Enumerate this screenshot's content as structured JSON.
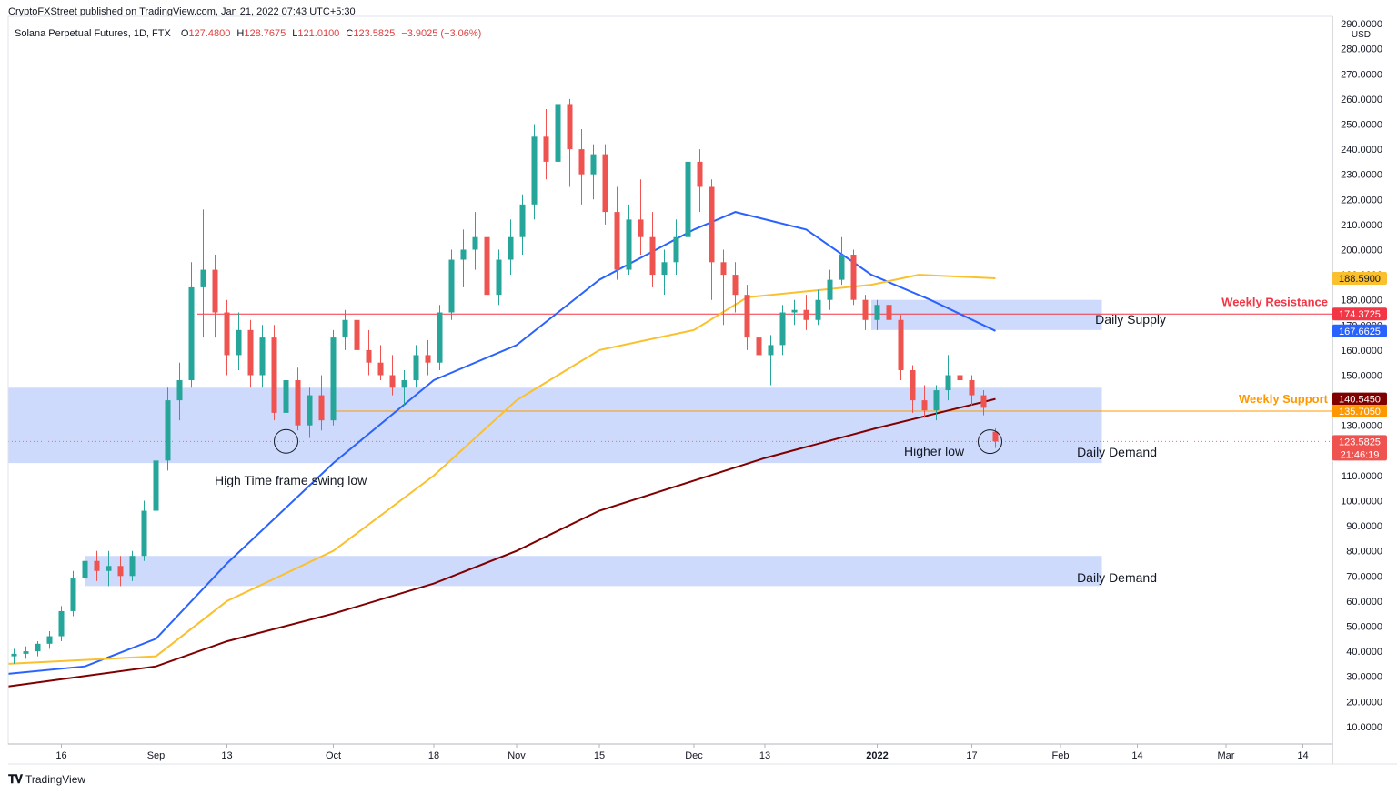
{
  "header": {
    "publisher_line": "CryptoFXStreet published on TradingView.com, Jan 21, 2022 07:43 UTC+5:30"
  },
  "ohlc_bar": {
    "symbol": "Solana Perpetual Futures, 1D, FTX",
    "o_label": "O",
    "o_value": "127.4800",
    "h_label": "H",
    "h_value": "128.7675",
    "l_label": "L",
    "l_value": "121.0100",
    "c_label": "C",
    "c_value": "123.5825",
    "change": "−3.9025 (−3.06%)"
  },
  "footer": {
    "brand": "TradingView"
  },
  "chart_data": {
    "type": "candlestick",
    "title": "Solana Perpetual Futures, 1D, FTX",
    "currency_label": "USD",
    "y_range": [
      0,
      295
    ],
    "y_ticks": [
      "290.0000",
      "280.0000",
      "270.0000",
      "260.0000",
      "250.0000",
      "240.0000",
      "230.0000",
      "220.0000",
      "210.0000",
      "200.0000",
      "190.0000",
      "180.0000",
      "170.0000",
      "160.0000",
      "150.0000",
      "140.0000",
      "130.0000",
      "120.0000",
      "110.0000",
      "100.0000",
      "90.0000",
      "80.0000",
      "70.0000",
      "60.0000",
      "50.0000",
      "40.0000",
      "30.0000",
      "20.0000",
      "10.0000"
    ],
    "x_ticks": [
      {
        "label": "16",
        "date": "2021-08-16"
      },
      {
        "label": "Sep",
        "date": "2021-09-01"
      },
      {
        "label": "13",
        "date": "2021-09-13"
      },
      {
        "label": "Oct",
        "date": "2021-10-01"
      },
      {
        "label": "18",
        "date": "2021-10-18"
      },
      {
        "label": "Nov",
        "date": "2021-11-01"
      },
      {
        "label": "15",
        "date": "2021-11-15"
      },
      {
        "label": "Dec",
        "date": "2021-12-01"
      },
      {
        "label": "13",
        "date": "2021-12-13"
      },
      {
        "label": "2022",
        "date": "2022-01-01",
        "bold": true
      },
      {
        "label": "17",
        "date": "2022-01-17"
      },
      {
        "label": "Feb",
        "date": "2022-02-01"
      },
      {
        "label": "14",
        "date": "2022-02-14"
      },
      {
        "label": "Mar",
        "date": "2022-03-01"
      },
      {
        "label": "14",
        "date": "2022-03-14"
      }
    ],
    "x_domain": [
      "2021-08-07",
      "2022-03-19"
    ],
    "colors": {
      "up": "#26a69a",
      "down": "#ef5350",
      "sma_fast": "#2962ff",
      "sma_mid": "#fbc02d",
      "sma_slow": "#800000",
      "zone": "#c6d3fb",
      "resistance": "#f23645",
      "support": "#ff9800",
      "last": "#f06e6e"
    },
    "candles_sampled_every": "2 days",
    "candles": [
      {
        "d": "2021-08-08",
        "o": 38,
        "h": 41,
        "l": 35,
        "c": 39
      },
      {
        "d": "2021-08-10",
        "o": 39,
        "h": 42,
        "l": 37,
        "c": 40
      },
      {
        "d": "2021-08-12",
        "o": 40,
        "h": 44,
        "l": 38,
        "c": 43
      },
      {
        "d": "2021-08-14",
        "o": 43,
        "h": 48,
        "l": 41,
        "c": 46
      },
      {
        "d": "2021-08-16",
        "o": 46,
        "h": 58,
        "l": 44,
        "c": 56
      },
      {
        "d": "2021-08-18",
        "o": 56,
        "h": 72,
        "l": 54,
        "c": 69
      },
      {
        "d": "2021-08-20",
        "o": 69,
        "h": 82,
        "l": 66,
        "c": 76
      },
      {
        "d": "2021-08-22",
        "o": 76,
        "h": 80,
        "l": 68,
        "c": 72
      },
      {
        "d": "2021-08-24",
        "o": 72,
        "h": 80,
        "l": 66,
        "c": 74
      },
      {
        "d": "2021-08-26",
        "o": 74,
        "h": 78,
        "l": 66,
        "c": 70
      },
      {
        "d": "2021-08-28",
        "o": 70,
        "h": 80,
        "l": 68,
        "c": 78
      },
      {
        "d": "2021-08-30",
        "o": 78,
        "h": 100,
        "l": 76,
        "c": 96
      },
      {
        "d": "2021-09-01",
        "o": 96,
        "h": 122,
        "l": 92,
        "c": 116
      },
      {
        "d": "2021-09-03",
        "o": 116,
        "h": 145,
        "l": 112,
        "c": 140
      },
      {
        "d": "2021-09-05",
        "o": 140,
        "h": 155,
        "l": 132,
        "c": 148
      },
      {
        "d": "2021-09-07",
        "o": 148,
        "h": 195,
        "l": 145,
        "c": 185
      },
      {
        "d": "2021-09-09",
        "o": 185,
        "h": 216,
        "l": 165,
        "c": 192
      },
      {
        "d": "2021-09-11",
        "o": 192,
        "h": 198,
        "l": 165,
        "c": 175
      },
      {
        "d": "2021-09-13",
        "o": 175,
        "h": 180,
        "l": 150,
        "c": 158
      },
      {
        "d": "2021-09-15",
        "o": 158,
        "h": 175,
        "l": 152,
        "c": 168
      },
      {
        "d": "2021-09-17",
        "o": 168,
        "h": 172,
        "l": 145,
        "c": 150
      },
      {
        "d": "2021-09-19",
        "o": 150,
        "h": 170,
        "l": 145,
        "c": 165
      },
      {
        "d": "2021-09-21",
        "o": 165,
        "h": 170,
        "l": 132,
        "c": 135
      },
      {
        "d": "2021-09-23",
        "o": 135,
        "h": 152,
        "l": 122,
        "c": 148
      },
      {
        "d": "2021-09-25",
        "o": 148,
        "h": 153,
        "l": 128,
        "c": 130
      },
      {
        "d": "2021-09-27",
        "o": 130,
        "h": 145,
        "l": 125,
        "c": 142
      },
      {
        "d": "2021-09-29",
        "o": 142,
        "h": 150,
        "l": 128,
        "c": 132
      },
      {
        "d": "2021-10-01",
        "o": 132,
        "h": 168,
        "l": 130,
        "c": 165
      },
      {
        "d": "2021-10-03",
        "o": 165,
        "h": 176,
        "l": 160,
        "c": 172
      },
      {
        "d": "2021-10-05",
        "o": 172,
        "h": 174,
        "l": 155,
        "c": 160
      },
      {
        "d": "2021-10-07",
        "o": 160,
        "h": 168,
        "l": 150,
        "c": 155
      },
      {
        "d": "2021-10-09",
        "o": 155,
        "h": 162,
        "l": 148,
        "c": 150
      },
      {
        "d": "2021-10-11",
        "o": 150,
        "h": 158,
        "l": 142,
        "c": 145
      },
      {
        "d": "2021-10-13",
        "o": 145,
        "h": 152,
        "l": 138,
        "c": 148
      },
      {
        "d": "2021-10-15",
        "o": 148,
        "h": 162,
        "l": 145,
        "c": 158
      },
      {
        "d": "2021-10-17",
        "o": 158,
        "h": 164,
        "l": 150,
        "c": 155
      },
      {
        "d": "2021-10-19",
        "o": 155,
        "h": 178,
        "l": 152,
        "c": 175
      },
      {
        "d": "2021-10-21",
        "o": 175,
        "h": 200,
        "l": 172,
        "c": 196
      },
      {
        "d": "2021-10-23",
        "o": 196,
        "h": 208,
        "l": 185,
        "c": 200
      },
      {
        "d": "2021-10-25",
        "o": 200,
        "h": 215,
        "l": 192,
        "c": 205
      },
      {
        "d": "2021-10-27",
        "o": 205,
        "h": 210,
        "l": 175,
        "c": 182
      },
      {
        "d": "2021-10-29",
        "o": 182,
        "h": 200,
        "l": 178,
        "c": 196
      },
      {
        "d": "2021-10-31",
        "o": 196,
        "h": 212,
        "l": 190,
        "c": 205
      },
      {
        "d": "2021-11-02",
        "o": 205,
        "h": 222,
        "l": 198,
        "c": 218
      },
      {
        "d": "2021-11-04",
        "o": 218,
        "h": 250,
        "l": 212,
        "c": 245
      },
      {
        "d": "2021-11-06",
        "o": 245,
        "h": 256,
        "l": 228,
        "c": 235
      },
      {
        "d": "2021-11-08",
        "o": 235,
        "h": 262,
        "l": 232,
        "c": 258
      },
      {
        "d": "2021-11-10",
        "o": 258,
        "h": 260,
        "l": 225,
        "c": 240
      },
      {
        "d": "2021-11-12",
        "o": 240,
        "h": 248,
        "l": 218,
        "c": 230
      },
      {
        "d": "2021-11-14",
        "o": 230,
        "h": 242,
        "l": 220,
        "c": 238
      },
      {
        "d": "2021-11-16",
        "o": 238,
        "h": 242,
        "l": 210,
        "c": 215
      },
      {
        "d": "2021-11-18",
        "o": 215,
        "h": 225,
        "l": 188,
        "c": 192
      },
      {
        "d": "2021-11-20",
        "o": 192,
        "h": 218,
        "l": 190,
        "c": 212
      },
      {
        "d": "2021-11-22",
        "o": 212,
        "h": 228,
        "l": 198,
        "c": 205
      },
      {
        "d": "2021-11-24",
        "o": 205,
        "h": 215,
        "l": 185,
        "c": 190
      },
      {
        "d": "2021-11-26",
        "o": 190,
        "h": 200,
        "l": 182,
        "c": 195
      },
      {
        "d": "2021-11-28",
        "o": 195,
        "h": 212,
        "l": 190,
        "c": 205
      },
      {
        "d": "2021-11-30",
        "o": 205,
        "h": 242,
        "l": 202,
        "c": 235
      },
      {
        "d": "2021-12-02",
        "o": 235,
        "h": 240,
        "l": 215,
        "c": 225
      },
      {
        "d": "2021-12-04",
        "o": 225,
        "h": 228,
        "l": 180,
        "c": 195
      },
      {
        "d": "2021-12-06",
        "o": 195,
        "h": 200,
        "l": 170,
        "c": 190
      },
      {
        "d": "2021-12-08",
        "o": 190,
        "h": 195,
        "l": 175,
        "c": 182
      },
      {
        "d": "2021-12-10",
        "o": 182,
        "h": 186,
        "l": 160,
        "c": 165
      },
      {
        "d": "2021-12-12",
        "o": 165,
        "h": 172,
        "l": 152,
        "c": 158
      },
      {
        "d": "2021-12-14",
        "o": 158,
        "h": 166,
        "l": 146,
        "c": 162
      },
      {
        "d": "2021-12-16",
        "o": 162,
        "h": 178,
        "l": 158,
        "c": 175
      },
      {
        "d": "2021-12-18",
        "o": 175,
        "h": 180,
        "l": 170,
        "c": 176
      },
      {
        "d": "2021-12-20",
        "o": 176,
        "h": 182,
        "l": 168,
        "c": 172
      },
      {
        "d": "2021-12-22",
        "o": 172,
        "h": 184,
        "l": 170,
        "c": 180
      },
      {
        "d": "2021-12-24",
        "o": 180,
        "h": 192,
        "l": 176,
        "c": 188
      },
      {
        "d": "2021-12-26",
        "o": 188,
        "h": 205,
        "l": 186,
        "c": 198
      },
      {
        "d": "2021-12-28",
        "o": 198,
        "h": 200,
        "l": 178,
        "c": 180
      },
      {
        "d": "2021-12-30",
        "o": 180,
        "h": 182,
        "l": 168,
        "c": 172
      },
      {
        "d": "2022-01-01",
        "o": 172,
        "h": 180,
        "l": 168,
        "c": 178
      },
      {
        "d": "2022-01-03",
        "o": 178,
        "h": 180,
        "l": 168,
        "c": 172
      },
      {
        "d": "2022-01-05",
        "o": 172,
        "h": 174,
        "l": 148,
        "c": 152
      },
      {
        "d": "2022-01-07",
        "o": 152,
        "h": 154,
        "l": 135,
        "c": 140
      },
      {
        "d": "2022-01-09",
        "o": 140,
        "h": 146,
        "l": 133,
        "c": 136
      },
      {
        "d": "2022-01-11",
        "o": 136,
        "h": 146,
        "l": 132,
        "c": 144
      },
      {
        "d": "2022-01-13",
        "o": 144,
        "h": 158,
        "l": 140,
        "c": 150
      },
      {
        "d": "2022-01-15",
        "o": 150,
        "h": 153,
        "l": 144,
        "c": 148
      },
      {
        "d": "2022-01-17",
        "o": 148,
        "h": 150,
        "l": 138,
        "c": 142
      },
      {
        "d": "2022-01-19",
        "o": 142,
        "h": 144,
        "l": 134,
        "c": 137
      },
      {
        "d": "2022-01-21",
        "o": 127.48,
        "h": 128.7675,
        "l": 121.01,
        "c": 123.5825
      }
    ],
    "moving_averages": [
      {
        "color": "#2962ff",
        "points": [
          [
            "2021-08-07",
            31
          ],
          [
            "2021-08-20",
            34
          ],
          [
            "2021-09-01",
            45
          ],
          [
            "2021-09-13",
            75
          ],
          [
            "2021-10-01",
            115
          ],
          [
            "2021-10-18",
            148
          ],
          [
            "2021-11-01",
            162
          ],
          [
            "2021-11-15",
            188
          ],
          [
            "2021-12-01",
            208
          ],
          [
            "2021-12-08",
            215
          ],
          [
            "2021-12-20",
            208
          ],
          [
            "2021-12-31",
            190
          ],
          [
            "2022-01-10",
            180
          ],
          [
            "2022-01-21",
            167.6625
          ]
        ]
      },
      {
        "color": "#fbc02d",
        "points": [
          [
            "2021-08-07",
            35
          ],
          [
            "2021-09-01",
            38
          ],
          [
            "2021-09-13",
            60
          ],
          [
            "2021-10-01",
            80
          ],
          [
            "2021-10-18",
            110
          ],
          [
            "2021-11-01",
            140
          ],
          [
            "2021-11-15",
            160
          ],
          [
            "2021-12-01",
            168
          ],
          [
            "2021-12-10",
            181
          ],
          [
            "2021-12-31",
            186
          ],
          [
            "2022-01-08",
            190
          ],
          [
            "2022-01-21",
            188.59
          ]
        ]
      },
      {
        "color": "#800000",
        "points": [
          [
            "2021-08-07",
            26
          ],
          [
            "2021-09-01",
            34
          ],
          [
            "2021-09-13",
            44
          ],
          [
            "2021-10-01",
            55
          ],
          [
            "2021-10-18",
            67
          ],
          [
            "2021-11-01",
            80
          ],
          [
            "2021-11-15",
            96
          ],
          [
            "2021-12-01",
            108
          ],
          [
            "2021-12-13",
            117
          ],
          [
            "2022-01-01",
            129
          ],
          [
            "2022-01-21",
            140.545
          ]
        ]
      }
    ],
    "zones": [
      {
        "label": "Daily Supply",
        "low": 168,
        "high": 180,
        "from": "2021-12-31",
        "to": "2022-02-08"
      },
      {
        "label": "Daily Demand",
        "low": 115,
        "high": 145,
        "from": "2021-08-07",
        "to": "2022-02-08"
      },
      {
        "label": "Daily Demand",
        "low": 66,
        "high": 78,
        "from": "2021-08-20",
        "to": "2022-02-08"
      }
    ],
    "horizontal_lines": [
      {
        "label": "Weekly Resistance",
        "value": 174.3725,
        "color": "#f23645",
        "from": "2021-09-08"
      },
      {
        "label": "Weekly Support",
        "value": 135.705,
        "color": "#ff9800",
        "from": "2021-10-01"
      },
      {
        "label": "",
        "value": 123.5825,
        "color": "#f06e6e",
        "dotted": true,
        "from": "2021-08-07"
      }
    ],
    "annotations": [
      {
        "text": "High Time frame swing low",
        "circle_at": {
          "d": "2021-09-23",
          "v": 124
        }
      },
      {
        "text": "Higher low",
        "circle_at": {
          "d": "2022-01-21",
          "v": 123.5
        }
      }
    ],
    "price_labels": [
      {
        "text": "188.5900",
        "value": 188.59,
        "bg": "#fbc02d",
        "fg": "#131722"
      },
      {
        "text": "174.3725",
        "value": 174.3725,
        "bg": "#f23645",
        "fg": "#ffffff"
      },
      {
        "text": "167.6625",
        "value": 167.6625,
        "bg": "#2962ff",
        "fg": "#ffffff"
      },
      {
        "text": "140.5450",
        "value": 140.545,
        "bg": "#800000",
        "fg": "#ffffff"
      },
      {
        "text": "135.7050",
        "value": 135.705,
        "bg": "#ff9800",
        "fg": "#ffffff"
      },
      {
        "text": "123.5825",
        "value": 123.5825,
        "bg": "#ef5350",
        "fg": "#ffffff",
        "sub": "21:46:19"
      }
    ]
  }
}
